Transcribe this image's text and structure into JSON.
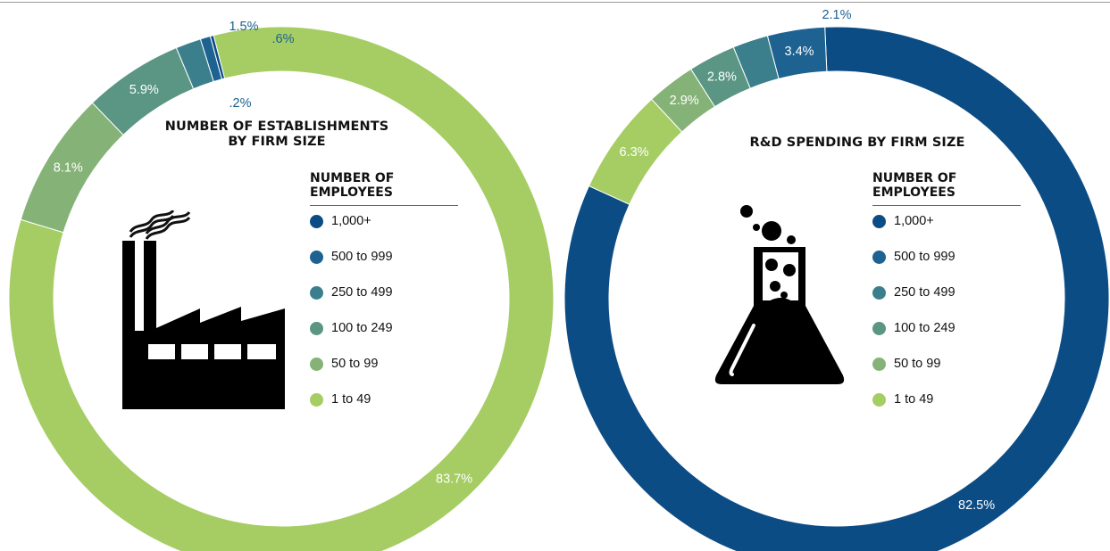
{
  "colors": {
    "1000plus": "#0c4c85",
    "500to999": "#1d6291",
    "250to499": "#3c7f8c",
    "100to249": "#5a9683",
    "50to99": "#85b377",
    "1to49": "#a5cd63",
    "label_white": "#ffffff",
    "label_outside": "#1d6291"
  },
  "legend_items": [
    "1,000+",
    "500 to 999",
    "250 to 499",
    "100 to 249",
    "50 to 99",
    "1 to 49"
  ],
  "legend_heading": [
    "NUMBER OF",
    "EMPLOYEES"
  ],
  "chart_data": [
    {
      "type": "pie",
      "title": "NUMBER OF ESTABLISHMENTS BY FIRM SIZE",
      "title_lines": [
        "NUMBER OF ESTABLISHMENTS",
        "BY FIRM SIZE"
      ],
      "legend_title": "NUMBER OF EMPLOYEES",
      "icon": "factory-icon",
      "slices": [
        {
          "category": "1 to 49",
          "value": 83.7,
          "label": "83.7%"
        },
        {
          "category": "50 to 99",
          "value": 8.1,
          "label": "8.1%"
        },
        {
          "category": "100 to 249",
          "value": 5.9,
          "label": "5.9%"
        },
        {
          "category": "250 to 499",
          "value": 1.5,
          "label": "1.5%"
        },
        {
          "category": "500 to 999",
          "value": 0.6,
          "label": ".6%"
        },
        {
          "category": "1,000+",
          "value": 0.2,
          "label": ".2%"
        }
      ]
    },
    {
      "type": "pie",
      "title": "R&D SPENDING BY FIRM SIZE",
      "title_lines": [
        "R&D SPENDING BY FIRM SIZE"
      ],
      "legend_title": "NUMBER OF EMPLOYEES",
      "icon": "flask-icon",
      "slices": [
        {
          "category": "1,000+",
          "value": 82.5,
          "label": "82.5%"
        },
        {
          "category": "1 to 49",
          "value": 6.3,
          "label": "6.3%"
        },
        {
          "category": "50 to 99",
          "value": 2.9,
          "label": "2.9%"
        },
        {
          "category": "100 to 249",
          "value": 2.8,
          "label": "2.8%"
        },
        {
          "category": "250 to 499",
          "value": 2.1,
          "label": "2.1%"
        },
        {
          "category": "500 to 999",
          "value": 3.4,
          "label": "3.4%"
        }
      ]
    }
  ]
}
